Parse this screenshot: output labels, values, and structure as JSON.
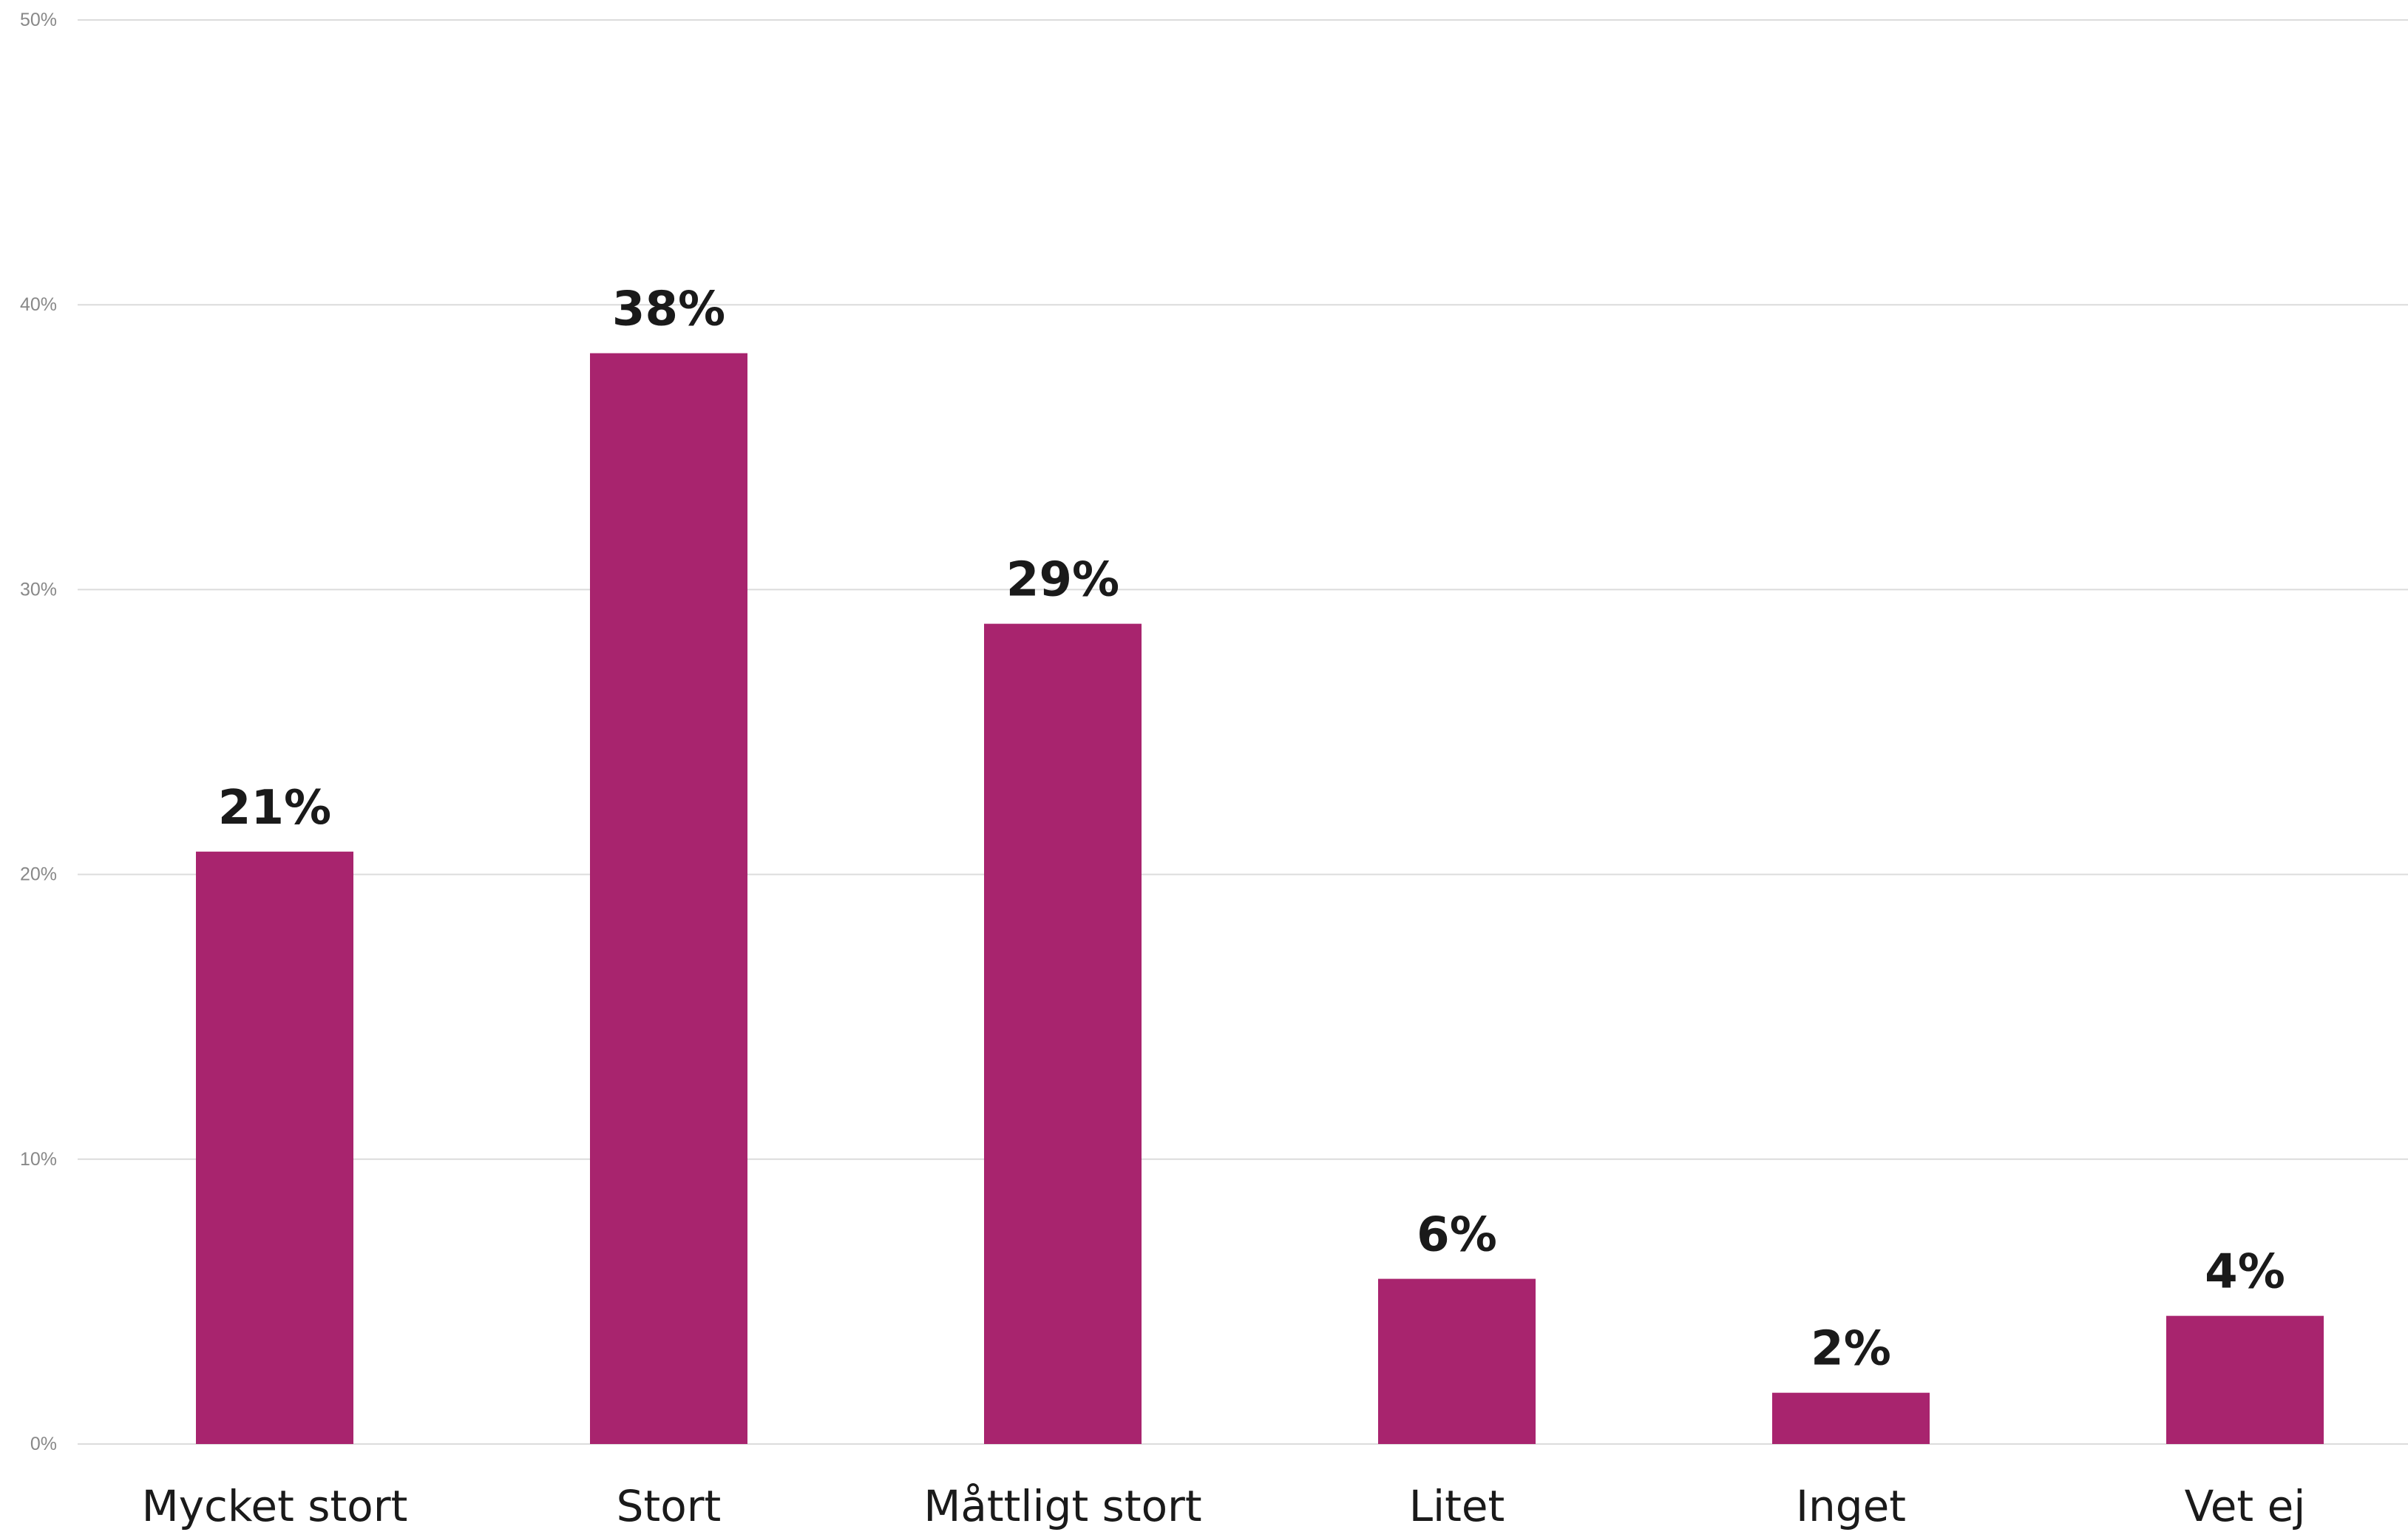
{
  "colors": {
    "bar": "#a8246e",
    "grid": "#dcdcdc",
    "text": "#1a1a1a",
    "tick_text": "#888888"
  },
  "chart_data": {
    "type": "bar",
    "title": "",
    "xlabel": "",
    "ylabel": "",
    "ylim": [
      0,
      50
    ],
    "grid": true,
    "legend": "none",
    "y_ticks": [
      0,
      10,
      20,
      30,
      40,
      50
    ],
    "y_tick_labels": [
      "0%",
      "10%",
      "20%",
      "30%",
      "40%",
      "50%"
    ],
    "categories": [
      "Mycket stort",
      "Stort",
      "Måttligt stort",
      "Litet",
      "Inget",
      "Vet ej"
    ],
    "values": [
      20.8,
      38.3,
      28.8,
      5.8,
      1.8,
      4.5
    ],
    "data_labels": [
      "21%",
      "38%",
      "29%",
      "6%",
      "2%",
      "4%"
    ]
  }
}
